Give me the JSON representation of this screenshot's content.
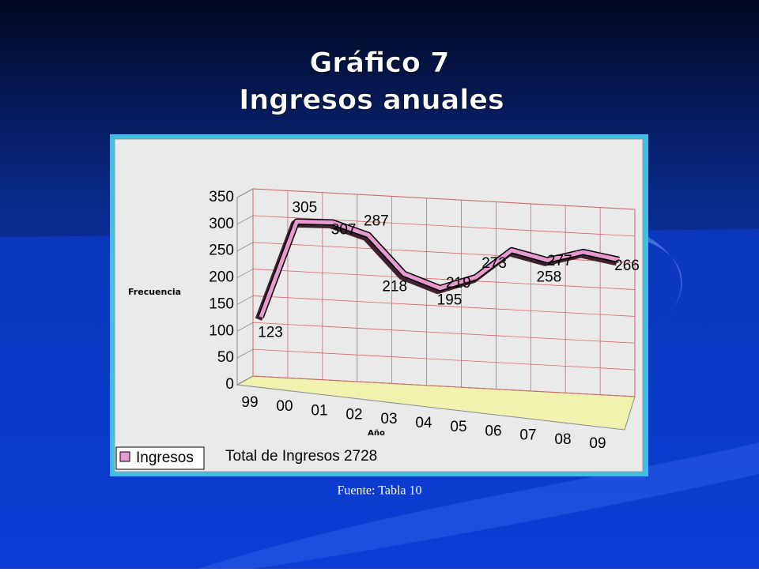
{
  "chart_data": {
    "type": "line",
    "title": [
      "Gráfico 7",
      "Ingresos anuales"
    ],
    "y_label": "Frecuencia",
    "x_label": "Año",
    "categories": [
      "99",
      "00",
      "01",
      "02",
      "03",
      "04",
      "05",
      "06",
      "07",
      "08",
      "09"
    ],
    "series": [
      {
        "name": "Ingresos",
        "color": "#e89ad0",
        "values": [
          123,
          305,
          307,
          287,
          218,
          195,
          219,
          273,
          258,
          277,
          266
        ]
      }
    ],
    "ylim": [
      0,
      350
    ],
    "yticks": [
      0,
      50,
      100,
      150,
      200,
      250,
      300,
      350
    ],
    "grid": true,
    "annotation": "Total de Ingresos 2728",
    "source": "Fuente: Tabla 10"
  }
}
